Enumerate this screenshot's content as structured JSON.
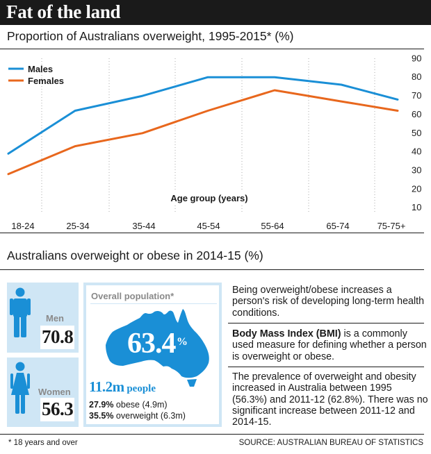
{
  "header": {
    "title": "Fat of the land"
  },
  "chart_data": {
    "type": "line",
    "title": "Proportion of Australians overweight, 1995-2015* (%)",
    "xlabel": "Age group (years)",
    "ylabel": "",
    "categories": [
      "18-24",
      "25-34",
      "35-44",
      "45-54",
      "55-64",
      "65-74",
      "75-75+"
    ],
    "y_ticks": [
      10,
      20,
      30,
      40,
      50,
      60,
      70,
      80,
      90
    ],
    "ylim": [
      0,
      92
    ],
    "grid": "vertical dotted",
    "legend_position": "top-left",
    "series": [
      {
        "name": "Males",
        "color": "#1a8fd6",
        "values": [
          39,
          62,
          70,
          80,
          80,
          76,
          68
        ]
      },
      {
        "name": "Females",
        "color": "#e8671d",
        "values": [
          28,
          43,
          50,
          62,
          73,
          67,
          62
        ]
      }
    ]
  },
  "stats": {
    "title": "Australians overweight or obese in 2014-15 (%)",
    "men": {
      "label": "Men",
      "value": "70.8"
    },
    "women": {
      "label": "Women",
      "value": "56.3"
    },
    "overall": {
      "label": "Overall population*",
      "percent": "63.4",
      "percent_sign": "%",
      "people_value": "11.2m",
      "people_unit": " people",
      "obese_pct": "27.9%",
      "obese_text": " obese (4.9m)",
      "overweight_pct": "35.5%",
      "overweight_text": " overweight (6.3m)"
    },
    "colors": {
      "accent": "#1a8fd6",
      "panel": "#cfe6f5",
      "female_line": "#e8671d"
    }
  },
  "notes": {
    "p1": "Being overweight/obese increases a person's risk of developing long-term health conditions.",
    "p2_bold": "Body Mass Index (BMI)",
    "p2_rest": " is a commonly used measure for defining whether a person is overweight or obese.",
    "p3": "The prevalence of overweight and obesity increased in Australia between 1995 (56.3%) and 2011-12 (62.8%). There was no significant increase between 2011-12 and 2014-15."
  },
  "footer": {
    "footnote": "* 18 years and over",
    "source": "SOURCE: AUSTRALIAN BUREAU OF STATISTICS"
  }
}
